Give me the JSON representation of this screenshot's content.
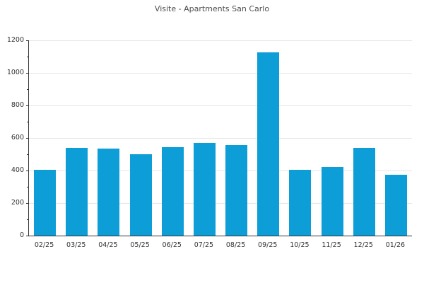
{
  "chart": {
    "title": "Visite - Apartments San Carlo",
    "colors": {
      "bar": "#0d9ed8",
      "grid": "#e6e6e6",
      "axis": "#333333",
      "tick_text": "#333333",
      "title_text": "#4d4d4d",
      "background": "#ffffff"
    }
  },
  "chart_data": {
    "type": "bar",
    "title": "Visite - Apartments San Carlo",
    "categories": [
      "02/25",
      "03/25",
      "04/25",
      "05/25",
      "06/25",
      "07/25",
      "08/25",
      "09/25",
      "10/25",
      "11/25",
      "12/25",
      "01/26"
    ],
    "values": [
      405,
      540,
      535,
      500,
      545,
      570,
      555,
      1125,
      405,
      420,
      540,
      375
    ],
    "xlabel": "",
    "ylabel": "",
    "ylim": [
      0,
      1200
    ],
    "ytick_step": 200,
    "yminor_step": 100,
    "grid": "horizontal-major",
    "legend": "none"
  }
}
